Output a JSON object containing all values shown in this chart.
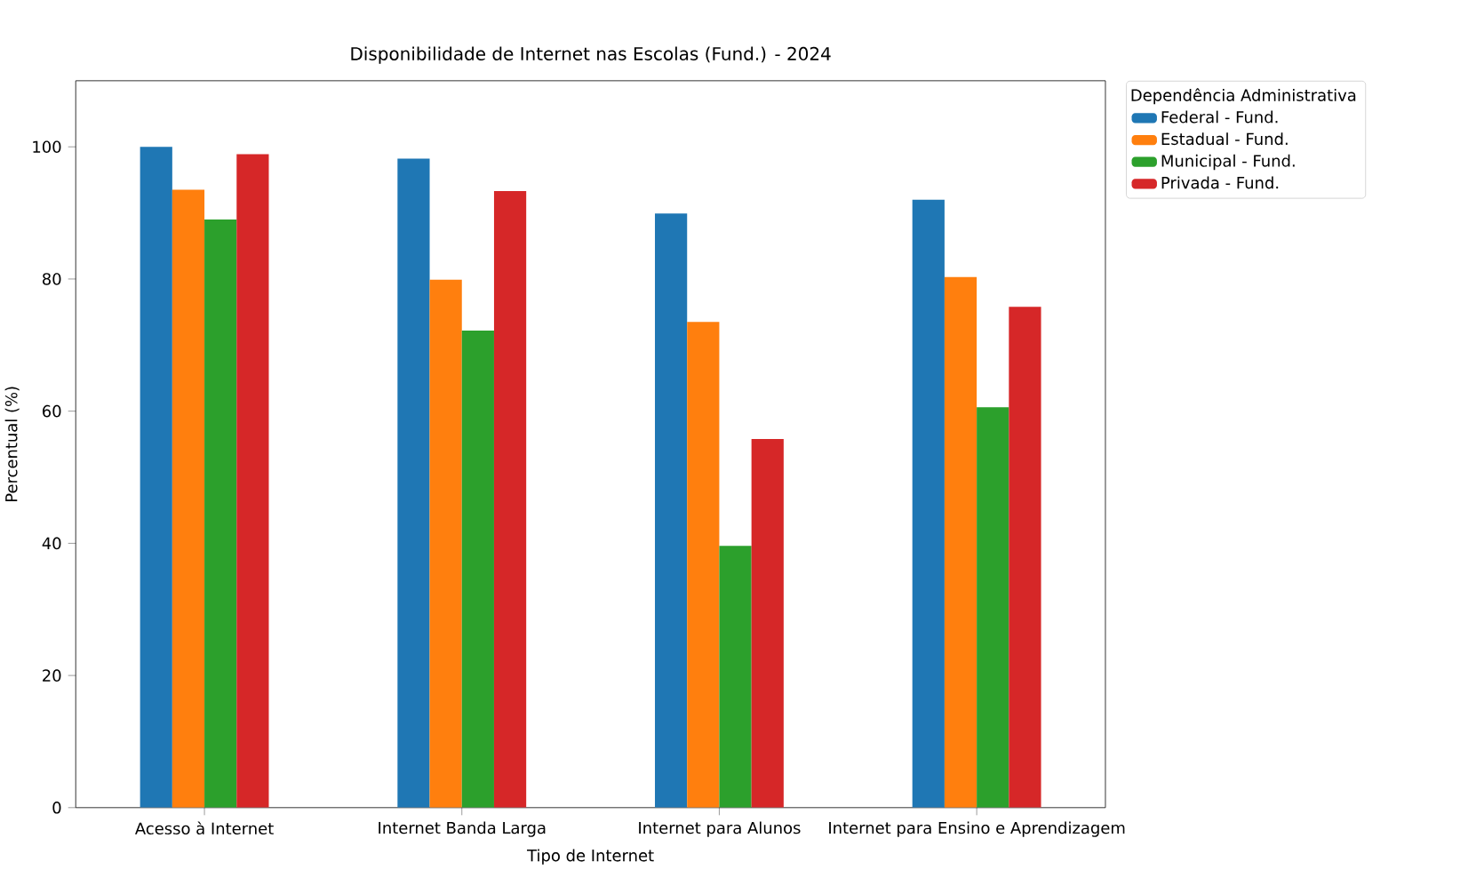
{
  "chart_data": {
    "type": "bar",
    "title": "Disponibilidade de Internet nas Escolas (Fund.) - 2024",
    "xlabel": "Tipo de Internet",
    "ylabel": "Percentual (%)",
    "legend_title": "Dependência Administrativa",
    "categories": [
      "Acesso à Internet",
      "Internet Banda Larga",
      "Internet para Alunos",
      "Internet para Ensino e Aprendizagem"
    ],
    "series": [
      {
        "name": "Federal - Fund.",
        "color": "#1f77b4",
        "values": [
          100,
          98.2,
          89.9,
          92
        ]
      },
      {
        "name": "Estadual - Fund.",
        "color": "#ff7f0e",
        "values": [
          93.5,
          79.9,
          73.5,
          80.3
        ]
      },
      {
        "name": "Municipal - Fund.",
        "color": "#2ca02c",
        "values": [
          89,
          72.2,
          39.6,
          60.6
        ]
      },
      {
        "name": "Privada - Fund.",
        "color": "#d62728",
        "values": [
          98.9,
          93.3,
          55.8,
          75.8
        ]
      }
    ],
    "ylim": [
      0,
      110
    ],
    "yticks": [
      0,
      20,
      40,
      60,
      80,
      100
    ],
    "grid": false,
    "legend": "top right"
  }
}
